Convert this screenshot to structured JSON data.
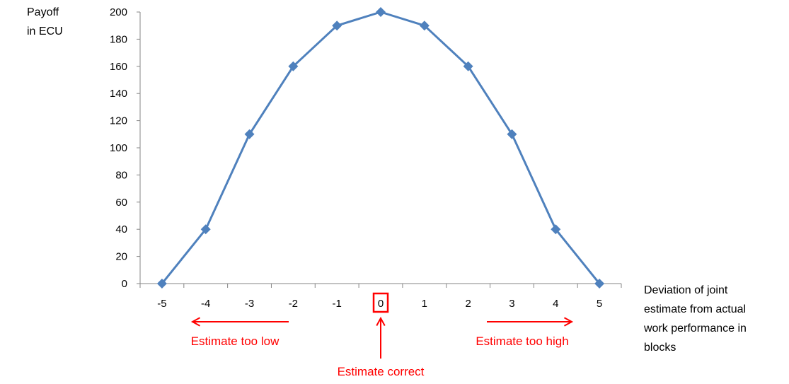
{
  "chart_data": {
    "type": "line",
    "x": [
      -5,
      -4,
      -3,
      -2,
      -1,
      0,
      1,
      2,
      3,
      4,
      5
    ],
    "series": [
      {
        "values": [
          0,
          40,
          110,
          160,
          190,
          200,
          190,
          160,
          110,
          40,
          0
        ]
      }
    ],
    "ylim": [
      0,
      200
    ],
    "y_ticks": [
      0,
      20,
      40,
      60,
      80,
      100,
      120,
      140,
      160,
      180,
      200
    ],
    "x_ticks": [
      -5,
      -4,
      -3,
      -2,
      -1,
      0,
      1,
      2,
      3,
      4,
      5
    ],
    "ylabel_lines": [
      "Payoff",
      "in ECU"
    ],
    "xlabel_lines": [
      "Deviation of joint",
      "estimate from actual",
      "work performance in",
      "blocks"
    ],
    "grid": false,
    "legend": "none",
    "marker": "diamond",
    "colors": {
      "line": "#4f81bd",
      "marker": "#4f81bd",
      "annotation": "#ff0000",
      "axis": "#868686"
    },
    "annotations": {
      "too_low": "Estimate too low",
      "too_high": "Estimate too high",
      "correct": "Estimate correct",
      "highlighted_tick": 0
    }
  }
}
